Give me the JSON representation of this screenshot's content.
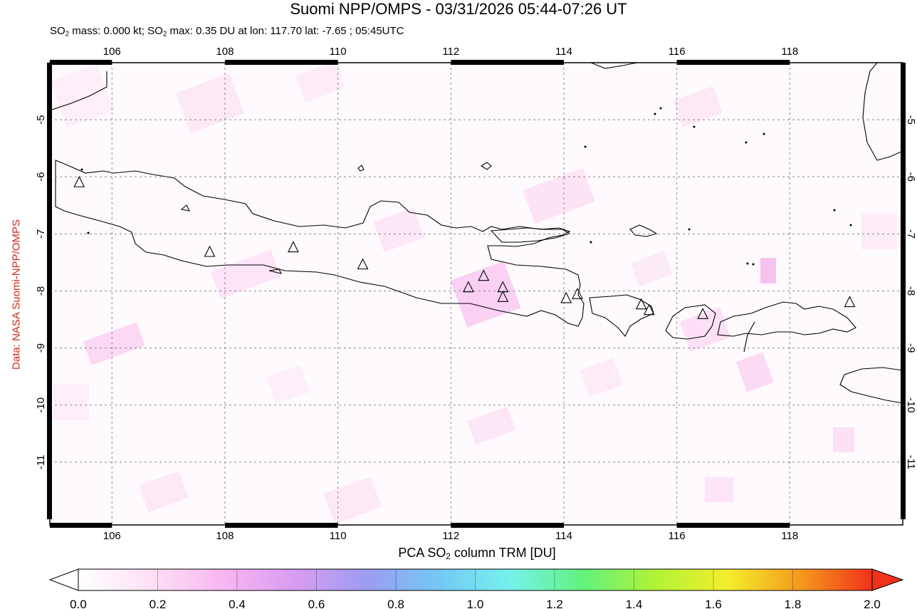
{
  "header": {
    "title": "Suomi NPP/OMPS - 03/31/2026 05:44-07:26 UT",
    "subtitle_parts": [
      "SO",
      "2",
      " mass: 0.000 kt; SO",
      "2",
      " max: 0.35 DU at lon: 117.70 lat: -7.65 ; 05:45UTC"
    ]
  },
  "credit": "Data: NASA Suomi-NPP/OMPS",
  "map": {
    "lon_ticks": [
      "106",
      "108",
      "110",
      "112",
      "114",
      "116",
      "118"
    ],
    "lat_ticks": [
      "-5",
      "-6",
      "-7",
      "-8",
      "-9",
      "-10",
      "-11"
    ],
    "lon_range": [
      104.9,
      120.0
    ],
    "lat_range": [
      -12.1,
      -4.0
    ],
    "gridlines": true,
    "volcano_marker": "triangle",
    "volcanoes": [
      {
        "lon": 105.42,
        "lat": -6.1
      },
      {
        "lon": 107.73,
        "lat": -7.32
      },
      {
        "lon": 109.21,
        "lat": -7.24
      },
      {
        "lon": 110.44,
        "lat": -7.54
      },
      {
        "lon": 112.31,
        "lat": -7.94
      },
      {
        "lon": 112.58,
        "lat": -7.74
      },
      {
        "lon": 112.92,
        "lat": -7.94
      },
      {
        "lon": 112.92,
        "lat": -8.11
      },
      {
        "lon": 114.04,
        "lat": -8.13
      },
      {
        "lon": 114.24,
        "lat": -8.06
      },
      {
        "lon": 115.37,
        "lat": -8.24
      },
      {
        "lon": 115.51,
        "lat": -8.34
      },
      {
        "lon": 116.46,
        "lat": -8.41
      },
      {
        "lon": 119.06,
        "lat": -8.2
      }
    ]
  },
  "colorbar": {
    "title_parts": [
      "PCA SO",
      "2",
      " column TRM [DU]"
    ],
    "ticks": [
      "0.0",
      "0.2",
      "0.4",
      "0.6",
      "0.8",
      "1.0",
      "1.2",
      "1.4",
      "1.6",
      "1.8",
      "2.0"
    ],
    "range": [
      0.0,
      2.0
    ],
    "colors": [
      "#ffffff",
      "#fde0f4",
      "#f8b6f2",
      "#d89cf0",
      "#9c9cf2",
      "#74c8f4",
      "#76f2ec",
      "#62f27c",
      "#b2f236",
      "#f4ee2c",
      "#f49a1e",
      "#f0321a"
    ]
  }
}
